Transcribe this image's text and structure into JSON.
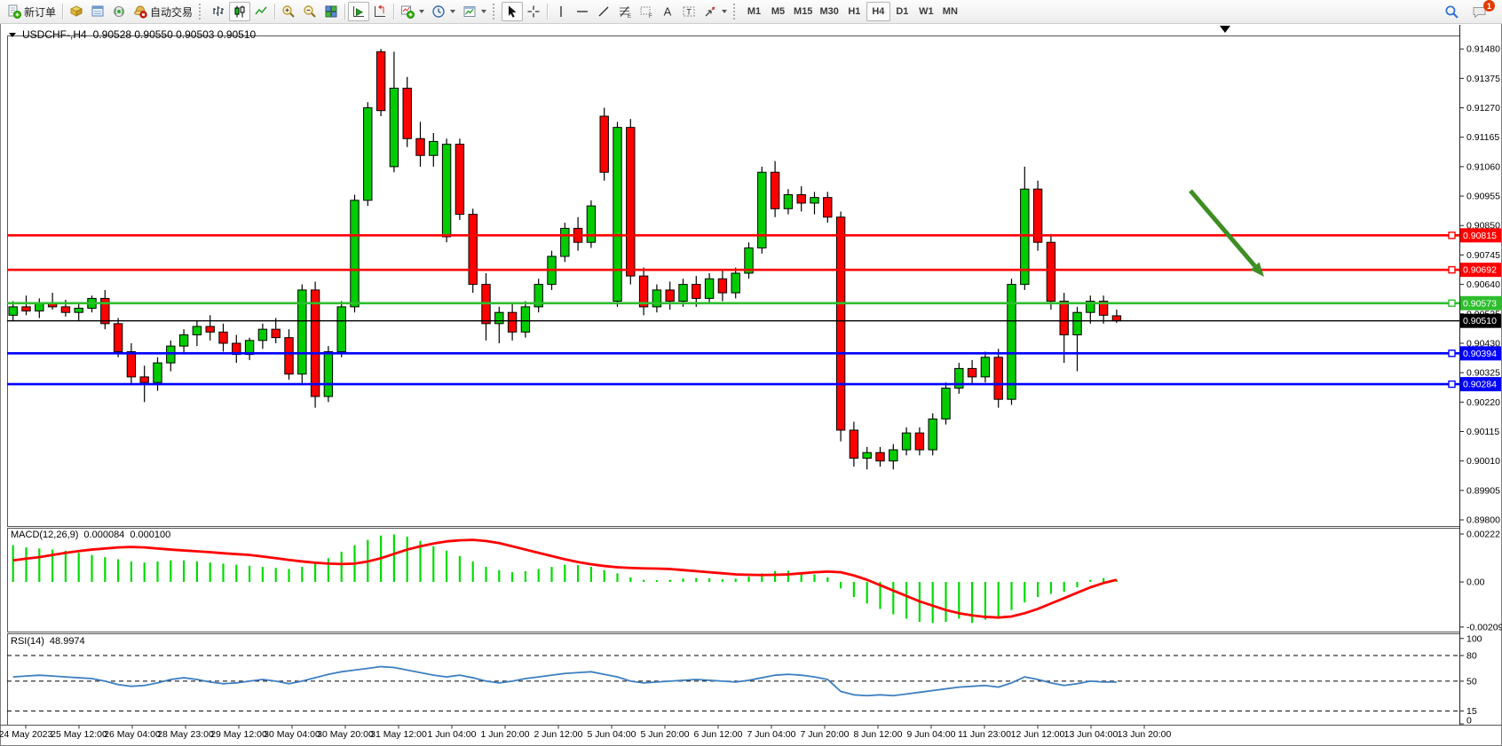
{
  "toolbar": {
    "new_order_label": "新订单",
    "autotrading_label": "自动交易",
    "timeframes": [
      "M1",
      "M5",
      "M15",
      "M30",
      "H1",
      "H4",
      "D1",
      "W1",
      "MN"
    ],
    "active_timeframe": "H4",
    "notification_count": "1"
  },
  "chart": {
    "symbol_title": "USDCHF-,H4",
    "ohlc_values": "0.90528 0.90550 0.90503 0.90510"
  },
  "indicators": {
    "macd_label": "MACD(12,26,9)",
    "macd_value1": "0.000084",
    "macd_value2": "0.000100",
    "rsi_label": "RSI(14)",
    "rsi_value": "48.9974"
  },
  "chart_data": [
    {
      "type": "candlestick",
      "title": "USDCHF- H4",
      "ylim": [
        0.89778,
        0.91528
      ],
      "y_axis_labels": [
        "0.91480",
        "0.91375",
        "0.91270",
        "0.91165",
        "0.91060",
        "0.90955",
        "0.90850",
        "0.90745",
        "0.90640",
        "0.90535",
        "0.90430",
        "0.90325",
        "0.90220",
        "0.90115",
        "0.90010",
        "0.89905",
        "0.89800"
      ],
      "x_labels": [
        "24 May 2023",
        "25 May 12:00",
        "26 May 04:00",
        "28 May 23:00",
        "29 May 12:00",
        "30 May 04:00",
        "30 May 20:00",
        "31 May 12:00",
        "1 Jun 04:00",
        "1 Jun 20:00",
        "2 Jun 12:00",
        "5 Jun 04:00",
        "5 Jun 20:00",
        "6 Jun 12:00",
        "7 Jun 04:00",
        "7 Jun 20:00",
        "8 Jun 12:00",
        "9 Jun 04:00",
        "11 Jun 23:00",
        "12 Jun 12:00",
        "13 Jun 04:00",
        "13 Jun 20:00"
      ],
      "hlines": [
        {
          "value": 0.90815,
          "label": "0.90815",
          "color": "#FF0000",
          "width": 2.6
        },
        {
          "value": 0.90692,
          "label": "0.90692",
          "color": "#FF0000",
          "width": 2.6
        },
        {
          "value": 0.90573,
          "label": "0.90573",
          "color": "#2EBE2E",
          "width": 2.6
        },
        {
          "value": 0.9051,
          "label": "0.90510",
          "color": "#000000",
          "width": 1.4
        },
        {
          "value": 0.90394,
          "label": "0.90394",
          "color": "#0000FF",
          "width": 2.6
        },
        {
          "value": 0.90284,
          "label": "0.90284",
          "color": "#0000FF",
          "width": 2.6
        }
      ],
      "annotation_arrow": {
        "from": [
          1341,
          215
        ],
        "to": [
          1424,
          312
        ],
        "color": "#3E8E22"
      },
      "up_color": "#00CC00",
      "down_color": "#FF0000",
      "candles": [
        [
          0.9053,
          0.9058,
          0.9051,
          0.9056
        ],
        [
          0.9056,
          0.906,
          0.9053,
          0.90545
        ],
        [
          0.90545,
          0.9059,
          0.9052,
          0.90575
        ],
        [
          0.90575,
          0.9061,
          0.9055,
          0.9056
        ],
        [
          0.9056,
          0.90585,
          0.90525,
          0.9054
        ],
        [
          0.9054,
          0.9057,
          0.9051,
          0.90555
        ],
        [
          0.90555,
          0.906,
          0.9054,
          0.9059
        ],
        [
          0.9059,
          0.9062,
          0.9048,
          0.905
        ],
        [
          0.905,
          0.9052,
          0.9038,
          0.904
        ],
        [
          0.904,
          0.9043,
          0.9028,
          0.9031
        ],
        [
          0.9031,
          0.9035,
          0.9022,
          0.9029
        ],
        [
          0.9029,
          0.9038,
          0.9026,
          0.9036
        ],
        [
          0.9036,
          0.9044,
          0.9033,
          0.9042
        ],
        [
          0.9042,
          0.9048,
          0.9039,
          0.9046
        ],
        [
          0.9046,
          0.9051,
          0.9042,
          0.9049
        ],
        [
          0.9049,
          0.9053,
          0.9044,
          0.9047
        ],
        [
          0.9047,
          0.905,
          0.904,
          0.9043
        ],
        [
          0.9043,
          0.9046,
          0.9036,
          0.9039
        ],
        [
          0.9039,
          0.9045,
          0.9037,
          0.9044
        ],
        [
          0.9044,
          0.905,
          0.9041,
          0.9048
        ],
        [
          0.9048,
          0.9052,
          0.9043,
          0.9045
        ],
        [
          0.9045,
          0.9048,
          0.903,
          0.9032
        ],
        [
          0.9032,
          0.9064,
          0.9028,
          0.9062
        ],
        [
          0.9062,
          0.9065,
          0.902,
          0.9024
        ],
        [
          0.9024,
          0.9042,
          0.9022,
          0.904
        ],
        [
          0.904,
          0.9058,
          0.9038,
          0.9056
        ],
        [
          0.9056,
          0.9096,
          0.9054,
          0.9094
        ],
        [
          0.9094,
          0.9129,
          0.9092,
          0.9127
        ],
        [
          0.9147,
          0.9148,
          0.9124,
          0.9126
        ],
        [
          0.9106,
          0.9147,
          0.9104,
          0.9134
        ],
        [
          0.9134,
          0.9138,
          0.9113,
          0.9116
        ],
        [
          0.9116,
          0.9122,
          0.9106,
          0.911
        ],
        [
          0.911,
          0.9118,
          0.9106,
          0.9115
        ],
        [
          0.9081,
          0.9116,
          0.9079,
          0.9114
        ],
        [
          0.9114,
          0.9116,
          0.9087,
          0.9089
        ],
        [
          0.9089,
          0.9091,
          0.9061,
          0.9064
        ],
        [
          0.9064,
          0.9068,
          0.9044,
          0.905
        ],
        [
          0.905,
          0.9056,
          0.9043,
          0.9054
        ],
        [
          0.9054,
          0.9057,
          0.9044,
          0.9047
        ],
        [
          0.9047,
          0.9058,
          0.9045,
          0.9056
        ],
        [
          0.9056,
          0.9066,
          0.9054,
          0.9064
        ],
        [
          0.9064,
          0.9076,
          0.9062,
          0.9074
        ],
        [
          0.9074,
          0.9086,
          0.9072,
          0.9084
        ],
        [
          0.9084,
          0.9088,
          0.9076,
          0.9079
        ],
        [
          0.9079,
          0.9094,
          0.9077,
          0.9092
        ],
        [
          0.9124,
          0.9127,
          0.9101,
          0.9104
        ],
        [
          0.9058,
          0.9122,
          0.9056,
          0.912
        ],
        [
          0.912,
          0.9123,
          0.9064,
          0.9067
        ],
        [
          0.9067,
          0.907,
          0.9053,
          0.9056
        ],
        [
          0.9056,
          0.9064,
          0.9054,
          0.9062
        ],
        [
          0.9062,
          0.9065,
          0.9055,
          0.9058
        ],
        [
          0.9058,
          0.9066,
          0.9056,
          0.9064
        ],
        [
          0.9064,
          0.9067,
          0.9056,
          0.9059
        ],
        [
          0.9059,
          0.9068,
          0.9057,
          0.9066
        ],
        [
          0.9066,
          0.9069,
          0.9058,
          0.9061
        ],
        [
          0.9061,
          0.907,
          0.9059,
          0.9068
        ],
        [
          0.9068,
          0.9079,
          0.9066,
          0.9077
        ],
        [
          0.9077,
          0.9106,
          0.9075,
          0.9104
        ],
        [
          0.9104,
          0.9108,
          0.9088,
          0.9091
        ],
        [
          0.9091,
          0.9098,
          0.9089,
          0.9096
        ],
        [
          0.9096,
          0.9099,
          0.909,
          0.9093
        ],
        [
          0.9093,
          0.9097,
          0.9089,
          0.9095
        ],
        [
          0.9095,
          0.9097,
          0.9086,
          0.9088
        ],
        [
          0.9088,
          0.909,
          0.9008,
          0.9012
        ],
        [
          0.9012,
          0.9015,
          0.8999,
          0.9002
        ],
        [
          0.9002,
          0.9006,
          0.8998,
          0.9004
        ],
        [
          0.9004,
          0.9006,
          0.8999,
          0.9001
        ],
        [
          0.9001,
          0.9007,
          0.8998,
          0.9005
        ],
        [
          0.9005,
          0.9013,
          0.9003,
          0.9011
        ],
        [
          0.9011,
          0.9013,
          0.9003,
          0.9005
        ],
        [
          0.9005,
          0.9018,
          0.9003,
          0.9016
        ],
        [
          0.9016,
          0.9029,
          0.9014,
          0.9027
        ],
        [
          0.9027,
          0.9036,
          0.9025,
          0.9034
        ],
        [
          0.9034,
          0.9037,
          0.9028,
          0.9031
        ],
        [
          0.9031,
          0.904,
          0.9029,
          0.9038
        ],
        [
          0.9038,
          0.9041,
          0.902,
          0.9023
        ],
        [
          0.9023,
          0.9066,
          0.9021,
          0.9064
        ],
        [
          0.9064,
          0.9106,
          0.9062,
          0.9098
        ],
        [
          0.9098,
          0.9101,
          0.9076,
          0.9079
        ],
        [
          0.9079,
          0.9082,
          0.9055,
          0.9058
        ],
        [
          0.9058,
          0.9061,
          0.9036,
          0.9046
        ],
        [
          0.9046,
          0.9056,
          0.9033,
          0.9054
        ],
        [
          0.9054,
          0.906,
          0.905,
          0.9058
        ],
        [
          0.9058,
          0.906,
          0.905,
          0.9053
        ],
        [
          0.90528,
          0.9055,
          0.90503,
          0.9051
        ]
      ]
    },
    {
      "type": "bar",
      "name": "MACD",
      "ylim": [
        -0.0023,
        0.00251
      ],
      "y_axis_labels": [
        "0.00222",
        "0.00",
        "-0.00209"
      ],
      "hist_color": "#00DC00",
      "signal_color": "#FF0000",
      "values": [
        0.0017,
        0.0016,
        0.00155,
        0.0015,
        0.00145,
        0.00135,
        0.00125,
        0.00115,
        0.00105,
        0.00095,
        0.0009,
        0.00095,
        0.001,
        0.001,
        0.00095,
        0.0009,
        0.00085,
        0.0008,
        0.00075,
        0.0007,
        0.00065,
        0.0006,
        0.0007,
        0.00085,
        0.0011,
        0.0014,
        0.0017,
        0.00195,
        0.00215,
        0.0022,
        0.0021,
        0.0019,
        0.00165,
        0.00145,
        0.0012,
        0.00095,
        0.0007,
        0.00055,
        0.00045,
        0.0005,
        0.0006,
        0.0007,
        0.0008,
        0.00078,
        0.0007,
        0.00055,
        0.0004,
        0.00022,
        0.0001,
        8e-05,
        0.0001,
        0.00015,
        0.00018,
        0.00017,
        0.00012,
        0.00015,
        0.00025,
        0.0004,
        0.0005,
        0.00052,
        0.00045,
        0.00035,
        0.00022,
        -0.0003,
        -0.0007,
        -0.001,
        -0.00125,
        -0.0015,
        -0.0017,
        -0.00185,
        -0.0019,
        -0.00185,
        -0.0017,
        -0.0019,
        -0.00175,
        -0.0016,
        -0.0013,
        -0.00095,
        -0.0007,
        -0.00055,
        -0.00045,
        -0.00025,
        0.0001,
        0.00018,
        8.4e-05
      ],
      "signal": [
        0.001,
        0.00108,
        0.00115,
        0.00125,
        0.00135,
        0.00143,
        0.0015,
        0.00155,
        0.0016,
        0.00162,
        0.0016,
        0.00155,
        0.0015,
        0.00146,
        0.00142,
        0.00138,
        0.00133,
        0.00129,
        0.00125,
        0.00118,
        0.0011,
        0.00102,
        0.00095,
        0.00089,
        0.00085,
        0.00083,
        0.00085,
        0.00095,
        0.0011,
        0.0013,
        0.0015,
        0.00165,
        0.00178,
        0.00188,
        0.00193,
        0.00195,
        0.0019,
        0.0018,
        0.00165,
        0.0015,
        0.00135,
        0.0012,
        0.00105,
        0.00092,
        0.00082,
        0.00074,
        0.00068,
        0.00065,
        0.00063,
        0.00062,
        0.0006,
        0.00055,
        0.0005,
        0.00045,
        0.0004,
        0.00035,
        0.00033,
        0.00032,
        0.00033,
        0.00035,
        0.0004,
        0.00045,
        0.00048,
        0.00045,
        0.0003,
        0.0001,
        -0.00015,
        -0.0004,
        -0.00065,
        -0.0009,
        -0.0011,
        -0.0013,
        -0.00145,
        -0.00155,
        -0.00162,
        -0.00165,
        -0.0016,
        -0.00145,
        -0.00125,
        -0.001,
        -0.00075,
        -0.0005,
        -0.00025,
        -5e-05,
        0.0001
      ]
    },
    {
      "type": "line",
      "name": "RSI",
      "ylim": [
        -1,
        106
      ],
      "y_axis_labels": [
        "100",
        "80",
        "50",
        "15",
        "0"
      ],
      "levels": [
        80,
        50,
        15
      ],
      "line_color": "#3E7FC1",
      "values": [
        55,
        56,
        57,
        56,
        55,
        54,
        53,
        50,
        46,
        44,
        45,
        48,
        52,
        54,
        52,
        49,
        47,
        48,
        50,
        52,
        50,
        47,
        50,
        54,
        58,
        61,
        63,
        65,
        67,
        66,
        63,
        60,
        57,
        55,
        57,
        54,
        50,
        48,
        50,
        53,
        55,
        57,
        59,
        60,
        61,
        58,
        55,
        50,
        48,
        49,
        50,
        51,
        52,
        51,
        50,
        49,
        51,
        54,
        57,
        58,
        57,
        55,
        52,
        38,
        34,
        33,
        34,
        33,
        35,
        37,
        39,
        41,
        43,
        44,
        45,
        43,
        48,
        55,
        52,
        48,
        45,
        47,
        50,
        49,
        49
      ]
    }
  ]
}
